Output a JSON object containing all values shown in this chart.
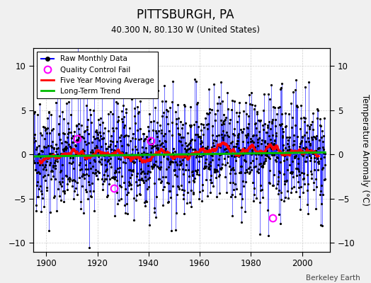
{
  "title": "PITTSBURGH, PA",
  "subtitle": "40.300 N, 80.130 W (United States)",
  "ylabel": "Temperature Anomaly (°C)",
  "credit": "Berkeley Earth",
  "xlim": [
    1895,
    2011
  ],
  "ylim": [
    -11,
    12
  ],
  "yticks": [
    -10,
    -5,
    0,
    5,
    10
  ],
  "xticks": [
    1900,
    1920,
    1940,
    1960,
    1980,
    2000
  ],
  "seed": 42,
  "start_year": 1895,
  "end_year": 2009,
  "noise_std": 3.2,
  "background_color": "#f0f0f0",
  "plot_bg_color": "#ffffff",
  "raw_color": "#0000ff",
  "moving_avg_color": "#ff0000",
  "trend_color": "#00bb00",
  "qc_color": "#ff00ff",
  "marker_color": "#000000",
  "qc_years": [
    1912.0,
    1926.5,
    1941.0,
    1988.5
  ],
  "qc_vals": [
    1.8,
    -3.8,
    1.5,
    -7.2
  ],
  "trend_slope": 0.004,
  "moving_avg_window": 60
}
